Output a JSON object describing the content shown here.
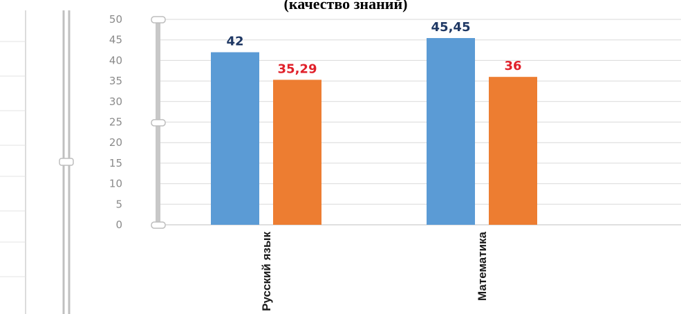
{
  "chart_data": {
    "type": "bar",
    "title": "(качество знаний)",
    "categories": [
      "Русский язык",
      "Математика"
    ],
    "series": [
      {
        "values": [
          42,
          45.45
        ],
        "data_labels": [
          "42",
          "45,45"
        ],
        "color": "#5b9bd5",
        "label_color": "#1f3864"
      },
      {
        "values": [
          35.29,
          36
        ],
        "data_labels": [
          "35,29",
          "36"
        ],
        "color": "#ed7d31",
        "label_color": "#e0202a"
      }
    ],
    "ylim": [
      0,
      50
    ],
    "yticks": [
      "0",
      "5",
      "10",
      "15",
      "20",
      "25",
      "30",
      "35",
      "40",
      "45",
      "50"
    ],
    "grid": true,
    "legend": "none",
    "colors": {
      "grid": "#d9d9d9",
      "axis": "#bfbfbf",
      "slider": "#c8c8c8"
    }
  }
}
